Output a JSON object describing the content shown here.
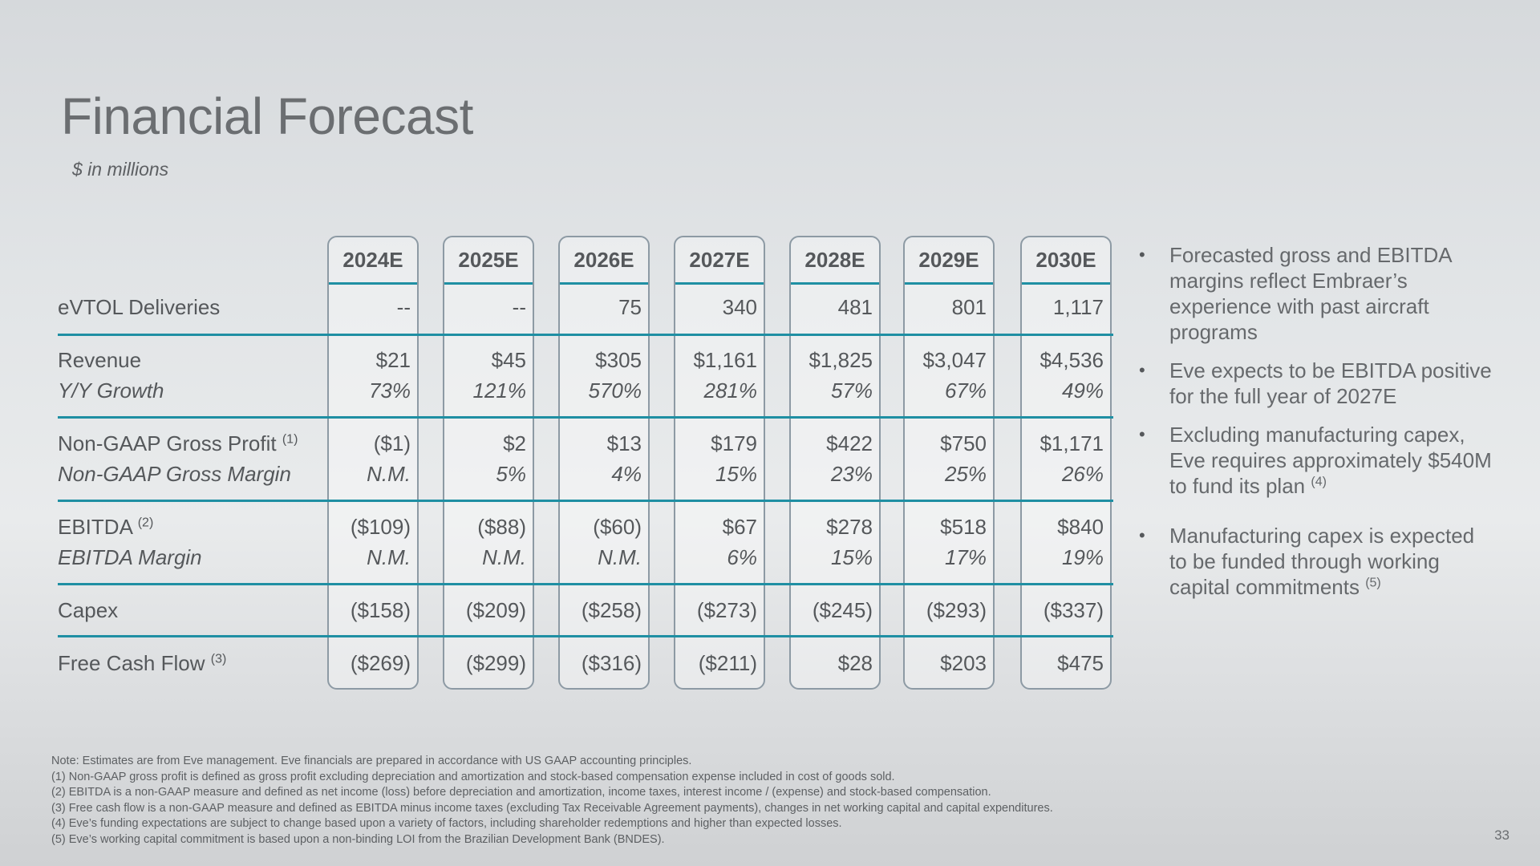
{
  "title": "Financial Forecast",
  "subtitle": "$ in millions",
  "years": [
    "2024E",
    "2025E",
    "2026E",
    "2027E",
    "2028E",
    "2029E",
    "2030E"
  ],
  "rows": [
    {
      "label": "eVTOL Deliveries",
      "sup": "",
      "italic": false,
      "values": [
        "--",
        "--",
        "75",
        "340",
        "481",
        "801",
        "1,117"
      ]
    },
    {
      "label": "Revenue",
      "sup": "",
      "italic": false,
      "values": [
        "$21",
        "$45",
        "$305",
        "$1,161",
        "$1,825",
        "$3,047",
        "$4,536"
      ]
    },
    {
      "label": "Y/Y Growth",
      "sup": "",
      "italic": true,
      "values": [
        "73%",
        "121%",
        "570%",
        "281%",
        "57%",
        "67%",
        "49%"
      ]
    },
    {
      "label": "Non-GAAP Gross Profit",
      "sup": "(1)",
      "italic": false,
      "values": [
        "($1)",
        "$2",
        "$13",
        "$179",
        "$422",
        "$750",
        "$1,171"
      ]
    },
    {
      "label": "Non-GAAP Gross Margin",
      "sup": "",
      "italic": true,
      "values": [
        "N.M.",
        "5%",
        "4%",
        "15%",
        "23%",
        "25%",
        "26%"
      ]
    },
    {
      "label": "EBITDA",
      "sup": "(2)",
      "italic": false,
      "values": [
        "($109)",
        "($88)",
        "($60)",
        "$67",
        "$278",
        "$518",
        "$840"
      ]
    },
    {
      "label": "EBITDA Margin",
      "sup": "",
      "italic": true,
      "values": [
        "N.M.",
        "N.M.",
        "N.M.",
        "6%",
        "15%",
        "17%",
        "19%"
      ]
    },
    {
      "label": "Capex",
      "sup": "",
      "italic": false,
      "values": [
        "($158)",
        "($209)",
        "($258)",
        "($273)",
        "($245)",
        "($293)",
        "($337)"
      ]
    },
    {
      "label": "Free Cash Flow",
      "sup": "(3)",
      "italic": false,
      "values": [
        "($269)",
        "($299)",
        "($316)",
        "($211)",
        "$28",
        "$203",
        "$475"
      ]
    }
  ],
  "bullets": [
    {
      "text": "Forecasted gross and EBITDA margins reflect Embraer’s experience with past aircraft programs",
      "sup": ""
    },
    {
      "text": "Eve expects to be EBITDA positive for the full year of 2027E",
      "sup": ""
    },
    {
      "text": "Excluding manufacturing capex, Eve requires approximately $540M to fund its plan",
      "sup": "(4)"
    },
    {
      "text": "Manufacturing capex is expected to be funded through working capital commitments",
      "sup": "(5)"
    }
  ],
  "notes": [
    "Note: Estimates are from Eve management. Eve financials are prepared in accordance with US GAAP accounting principles.",
    "(1) Non-GAAP gross profit is defined as gross profit excluding depreciation and amortization and stock-based compensation expense included in cost of goods sold.",
    "(2) EBITDA is a non-GAAP measure and defined as net income (loss) before depreciation and amortization, income taxes, interest income / (expense) and stock-based compensation.",
    "(3) Free cash flow is a non-GAAP measure and defined as EBITDA minus income taxes (excluding Tax Receivable Agreement payments), changes in net working capital and capital expenditures.",
    "(4) Eve’s funding expectations are subject to change based upon a variety of factors, including shareholder redemptions and higher than expected losses.",
    "(5) Eve’s working capital commitment is based upon a non-binding LOI from the Brazilian Development Bank (BNDES)."
  ],
  "page_number": "33"
}
